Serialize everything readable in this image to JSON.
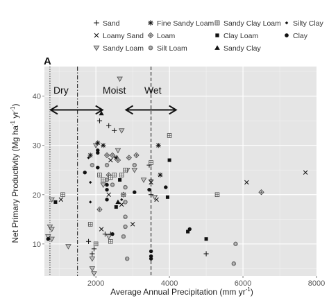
{
  "chart_data": {
    "type": "scatter",
    "panel_label": "A",
    "xlabel": "Average Annual Precipitation  (mm yr",
    "xlabel_sup": "-1",
    "xlabel_end": ")",
    "ylabel": "Net Primary Productivity  (Mg ha",
    "ylabel_sup1": "-1",
    "ylabel_mid": " yr",
    "ylabel_sup2": "-1",
    "ylabel_end": ")",
    "xlim": [
      600,
      8000
    ],
    "ylim": [
      3.5,
      46
    ],
    "xticks": [
      2000,
      4000,
      6000,
      8000
    ],
    "yticks": [
      10,
      20,
      30,
      40
    ],
    "grid": true,
    "legend_position": "top",
    "vlines": [
      {
        "x": 750,
        "style": "dotted"
      },
      {
        "x": 1500,
        "style": "dashdot"
      },
      {
        "x": 3500,
        "style": "dashed"
      }
    ],
    "regions": [
      {
        "label": "Dry",
        "x": 1050,
        "y": 40.5
      },
      {
        "label": "Moist",
        "x": 2500,
        "y": 40.5
      },
      {
        "label": "Wet",
        "x": 3550,
        "y": 40.5
      }
    ],
    "arrows": [
      {
        "x1": 750,
        "x2": 2200,
        "y": 37.2
      },
      {
        "x1": 2800,
        "x2": 4200,
        "y": 37.2
      }
    ],
    "series": [
      {
        "name": "Sand",
        "marker": "plus",
        "points": [
          [
            1900,
            8
          ],
          [
            1950,
            9
          ],
          [
            2100,
            35
          ],
          [
            2350,
            34
          ],
          [
            2500,
            33
          ],
          [
            2400,
            12
          ],
          [
            2250,
            12
          ],
          [
            3450,
            26
          ],
          [
            3500,
            23
          ],
          [
            3500,
            20
          ],
          [
            5000,
            8
          ],
          [
            1800,
            10.5
          ]
        ]
      },
      {
        "name": "Loamy Sand",
        "marker": "x",
        "points": [
          [
            1050,
            19
          ],
          [
            2250,
            23
          ],
          [
            2350,
            20
          ],
          [
            2400,
            27
          ],
          [
            2700,
            18
          ],
          [
            2750,
            20
          ],
          [
            3000,
            14
          ],
          [
            3650,
            19
          ],
          [
            3500,
            22.5
          ],
          [
            6100,
            22.5
          ],
          [
            7700,
            24.5
          ],
          [
            2150,
            13
          ]
        ]
      },
      {
        "name": "Sandy Loam",
        "marker": "tri-down",
        "points": [
          [
            700,
            11.5
          ],
          [
            750,
            13.5
          ],
          [
            800,
            13
          ],
          [
            800,
            11
          ],
          [
            800,
            19
          ],
          [
            1250,
            9.5
          ],
          [
            1900,
            7
          ],
          [
            1900,
            5
          ],
          [
            1950,
            4
          ],
          [
            2000,
            30
          ],
          [
            2200,
            22
          ],
          [
            2600,
            29
          ],
          [
            2700,
            33
          ],
          [
            2650,
            43.5
          ],
          [
            2850,
            25
          ],
          [
            3050,
            25
          ],
          [
            3300,
            23
          ],
          [
            3600,
            19.5
          ],
          [
            2350,
            11.5
          ]
        ]
      },
      {
        "name": "Fine Sandy Loam",
        "marker": "asterisk",
        "points": [
          [
            1850,
            28
          ],
          [
            2050,
            30.5
          ],
          [
            2200,
            30
          ],
          [
            2550,
            27.5
          ],
          [
            3700,
            30
          ],
          [
            3750,
            24
          ]
        ]
      },
      {
        "name": "Loam",
        "marker": "diamond",
        "points": [
          [
            2300,
            28
          ],
          [
            2450,
            28
          ],
          [
            2350,
            24
          ],
          [
            2600,
            27
          ],
          [
            2750,
            20
          ],
          [
            2900,
            27.5
          ],
          [
            3100,
            28
          ],
          [
            6500,
            20.5
          ],
          [
            2100,
            17
          ]
        ]
      },
      {
        "name": "Silt Loam",
        "marker": "circle-gray",
        "points": [
          [
            1900,
            26
          ],
          [
            2300,
            26
          ],
          [
            2300,
            23
          ],
          [
            2450,
            22
          ],
          [
            2800,
            21.5
          ],
          [
            2800,
            18.5
          ],
          [
            2800,
            15.5
          ],
          [
            2800,
            13.5
          ],
          [
            2750,
            11.5
          ],
          [
            2850,
            7
          ],
          [
            3050,
            26
          ],
          [
            5800,
            10
          ],
          [
            5750,
            6
          ]
        ]
      },
      {
        "name": "Sandy Clay Loam",
        "marker": "square-box",
        "points": [
          [
            1100,
            20
          ],
          [
            2100,
            24
          ],
          [
            2200,
            23
          ],
          [
            2400,
            23.5
          ],
          [
            2500,
            24
          ],
          [
            2700,
            24
          ],
          [
            2800,
            25
          ],
          [
            1850,
            14
          ],
          [
            2400,
            10.5
          ],
          [
            2000,
            10
          ],
          [
            3500,
            26.5
          ],
          [
            4000,
            32
          ],
          [
            5300,
            20
          ]
        ]
      },
      {
        "name": "Clay Loam",
        "marker": "square",
        "points": [
          [
            900,
            18.5
          ],
          [
            2650,
            23
          ],
          [
            2550,
            17.5
          ],
          [
            4000,
            27
          ],
          [
            3950,
            19.5
          ],
          [
            4500,
            12.5
          ],
          [
            5000,
            11
          ]
        ]
      },
      {
        "name": "Sandy Clay",
        "marker": "triangle",
        "points": [
          [
            2150,
            36.5
          ],
          [
            2600,
            18.5
          ]
        ]
      },
      {
        "name": "Silty Clay",
        "marker": "diamond-small",
        "points": [
          [
            1800,
            27.5
          ],
          [
            1850,
            22.5
          ],
          [
            1850,
            18.5
          ],
          [
            2700,
            19
          ]
        ]
      },
      {
        "name": "Clay",
        "marker": "circle",
        "points": [
          [
            700,
            11
          ],
          [
            1700,
            24.5
          ],
          [
            2050,
            28.5
          ],
          [
            2050,
            25.5
          ],
          [
            2050,
            29
          ],
          [
            2300,
            21
          ],
          [
            2300,
            19
          ],
          [
            2300,
            22
          ],
          [
            2450,
            12
          ],
          [
            3050,
            20.5
          ],
          [
            3450,
            21
          ],
          [
            3500,
            8.5
          ],
          [
            3500,
            7.5
          ],
          [
            3500,
            7
          ],
          [
            3900,
            21.5
          ],
          [
            4550,
            13
          ]
        ]
      }
    ]
  }
}
